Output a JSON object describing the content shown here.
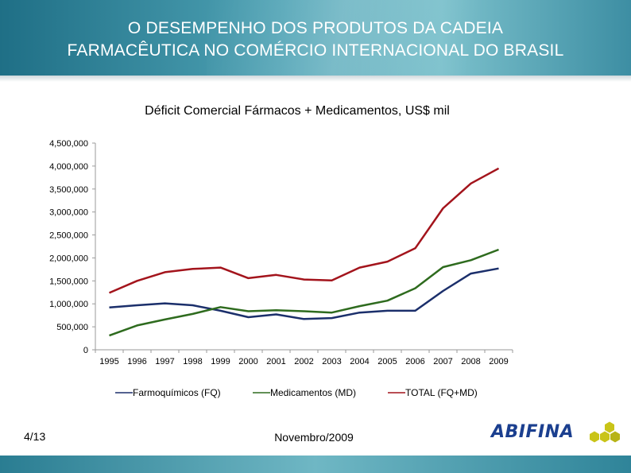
{
  "header": {
    "title_line1": "O DESEMPENHO DOS PRODUTOS DA CADEIA",
    "title_line2": "FARMACÊUTICA NO COMÉRCIO INTERNACIONAL DO BRASIL"
  },
  "footer": {
    "page": "4/13",
    "date": "Novembro/2009",
    "logo_text": "ABIFINA"
  },
  "colors": {
    "header_bg": "#3d8ea3",
    "fq": "#1b2f6b",
    "md": "#2e6b1e",
    "total": "#a3141c",
    "logo_blue": "#1b3f8f",
    "logo_yellow": "#c9c418"
  },
  "chart_data": {
    "type": "line",
    "title": "Déficit Comercial  Fármacos + Medicamentos, US$ mil",
    "xlabel": "",
    "ylabel": "",
    "ylim": [
      0,
      4500000
    ],
    "yticks": [
      "0",
      "500,000",
      "1,000,000",
      "1,500,000",
      "2,000,000",
      "2,500,000",
      "3,000,000",
      "3,500,000",
      "4,000,000",
      "4,500,000"
    ],
    "categories": [
      "1995",
      "1996",
      "1997",
      "1998",
      "1999",
      "2000",
      "2001",
      "2002",
      "2003",
      "2004",
      "2005",
      "2006",
      "2007",
      "2008",
      "2009"
    ],
    "legend_position": "bottom",
    "grid": false,
    "series": [
      {
        "name": "Farmoquímicos (FQ)",
        "color": "#1b2f6b",
        "values": [
          920000,
          970000,
          1010000,
          970000,
          850000,
          710000,
          770000,
          670000,
          690000,
          810000,
          850000,
          850000,
          1280000,
          1660000,
          1770000
        ]
      },
      {
        "name": "Medicamentos (MD)",
        "color": "#2e6b1e",
        "values": [
          310000,
          530000,
          660000,
          780000,
          930000,
          840000,
          860000,
          840000,
          810000,
          950000,
          1070000,
          1340000,
          1800000,
          1950000,
          2180000
        ]
      },
      {
        "name": "TOTAL (FQ+MD)",
        "color": "#a3141c",
        "values": [
          1240000,
          1500000,
          1690000,
          1760000,
          1790000,
          1560000,
          1630000,
          1530000,
          1510000,
          1790000,
          1920000,
          2210000,
          3080000,
          3620000,
          3950000
        ]
      }
    ]
  }
}
